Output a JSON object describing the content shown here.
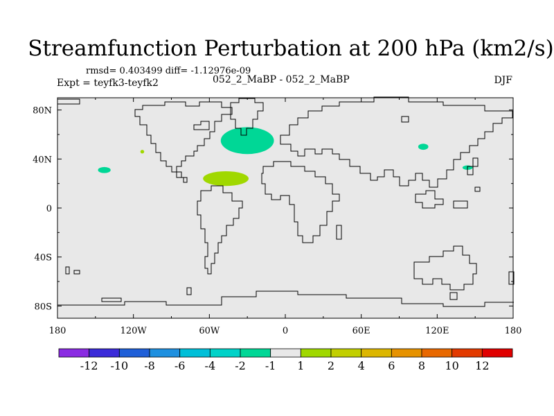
{
  "chart_data": {
    "type": "heatmap",
    "title": "Streamfunction Perturbation at 200 hPa (km2/s)",
    "stats_line": "rmsd= 0.403499 diff= -1.12976e-09",
    "left_label": "Expt = teyfk3-teyfk2",
    "center_label": "052_2_MaBP - 052_2_MaBP",
    "right_label": "DJF",
    "x_range": [
      -180,
      180
    ],
    "y_range": [
      -90,
      90
    ],
    "x_ticks": [
      {
        "value": -180,
        "label": "180"
      },
      {
        "value": -120,
        "label": "120W"
      },
      {
        "value": -60,
        "label": "60W"
      },
      {
        "value": 0,
        "label": "0"
      },
      {
        "value": 60,
        "label": "60E"
      },
      {
        "value": 120,
        "label": "120E"
      },
      {
        "value": 180,
        "label": "180"
      }
    ],
    "y_ticks": [
      {
        "value": 80,
        "label": "80N"
      },
      {
        "value": 40,
        "label": "40N"
      },
      {
        "value": 0,
        "label": "0"
      },
      {
        "value": -40,
        "label": "40S"
      },
      {
        "value": -80,
        "label": "80S"
      }
    ],
    "background_level_color": "#e8e8e8",
    "features": [
      {
        "lon": -30,
        "lat": 55,
        "rlon": 21,
        "rlat": 11,
        "level": "-2",
        "color": "#00d796"
      },
      {
        "lon": -47,
        "lat": 24,
        "rlon": 18,
        "rlat": 6,
        "level": "2",
        "color": "#a0d800"
      },
      {
        "lon": -143,
        "lat": 31,
        "rlon": 5,
        "rlat": 2.5,
        "level": "-2",
        "color": "#00d796"
      },
      {
        "lon": -113,
        "lat": 46,
        "rlon": 1.5,
        "rlat": 1.5,
        "level": "2",
        "color": "#a0d800"
      },
      {
        "lon": 109,
        "lat": 50,
        "rlon": 4,
        "rlat": 2.5,
        "level": "-2",
        "color": "#00d796"
      },
      {
        "lon": 144,
        "lat": 33,
        "rlon": 4,
        "rlat": 1.8,
        "level": "-2",
        "color": "#00d796"
      }
    ],
    "colorbar": {
      "colors": [
        "#8a2be2",
        "#3b2bd9",
        "#1f5fd8",
        "#1e90e0",
        "#00bfd8",
        "#00d2c8",
        "#00d796",
        "#e8e8e8",
        "#a0d800",
        "#c2cf00",
        "#dcb600",
        "#e69200",
        "#e86800",
        "#e23a00",
        "#e00000"
      ],
      "labels": [
        "-12",
        "-10",
        "-8",
        "-6",
        "-4",
        "-2",
        "-1",
        "1",
        "2",
        "4",
        "6",
        "8",
        "10",
        "12"
      ]
    }
  }
}
